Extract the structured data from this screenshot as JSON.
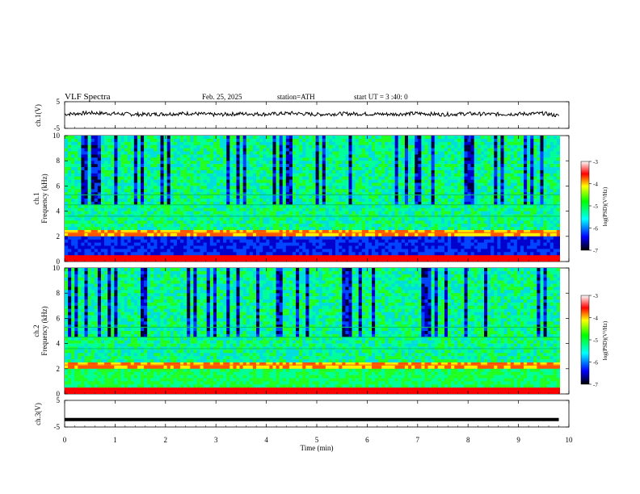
{
  "header": {
    "title": "VLF  Spectra",
    "date": "Feb. 25, 2025",
    "station": "station=ATH",
    "start": "start  UT  =    3  :40: 0"
  },
  "chart_data": [
    {
      "type": "line",
      "name": "ch1-waveform",
      "ylabel": "ch.1(V)",
      "ylim": [
        -5,
        5
      ],
      "yticks": [
        "5",
        "-5"
      ],
      "xlim": [
        0,
        10
      ],
      "x": [
        0,
        0.5,
        1,
        1.5,
        2,
        2.5,
        3,
        3.5,
        4,
        4.5,
        5,
        5.5,
        6,
        6.5,
        7,
        7.5,
        8,
        8.5,
        9,
        9.5,
        9.8
      ],
      "y": [
        0.3,
        0.8,
        0.5,
        0.2,
        0.4,
        0.6,
        0.1,
        0.5,
        0.3,
        0.7,
        0.2,
        0.5,
        0.4,
        0.3,
        0.6,
        0.2,
        0.5,
        0.3,
        0.4,
        0.6,
        -0.3
      ]
    },
    {
      "type": "heatmap",
      "name": "ch1-spectrogram",
      "ylabel": "ch.1\nFrequency  (kHz)",
      "ylim": [
        0,
        10
      ],
      "yticks": [
        "0",
        "2",
        "4",
        "6",
        "8",
        "10"
      ],
      "xlim": [
        0,
        9.8
      ],
      "colorbar": {
        "label": "log(PSD)(V²/Hz)",
        "range": [
          -7,
          -3
        ],
        "ticks": [
          "-3",
          "-4",
          "-5",
          "-6",
          "-7"
        ]
      }
    },
    {
      "type": "heatmap",
      "name": "ch2-spectrogram",
      "ylabel": "ch.2\nFrequency  (kHz)",
      "ylim": [
        0,
        10
      ],
      "yticks": [
        "0",
        "2",
        "4",
        "6",
        "8",
        "10"
      ],
      "xlim": [
        0,
        9.8
      ],
      "colorbar": {
        "label": "log(PSD)(V²/Hz)",
        "range": [
          -7,
          -3
        ],
        "ticks": [
          "-3",
          "-4",
          "-5",
          "-6",
          "-7"
        ]
      }
    },
    {
      "type": "line",
      "name": "ch3-waveform",
      "ylabel": "ch.3(V)",
      "ylim": [
        -5,
        5
      ],
      "yticks": [
        "5",
        "-5"
      ],
      "xlim": [
        0,
        10
      ],
      "x": [
        0,
        9.8
      ],
      "y": [
        -2.2,
        -2.2
      ]
    }
  ],
  "xaxis": {
    "label": "Time  (min)",
    "ticks": [
      "0",
      "1",
      "2",
      "3",
      "4",
      "5",
      "6",
      "7",
      "8",
      "9",
      "10"
    ]
  },
  "colors": {
    "colormap": [
      "#000000",
      "#0000ff",
      "#00ffff",
      "#00ff00",
      "#ffff00",
      "#ff0000",
      "#ffffff"
    ]
  }
}
